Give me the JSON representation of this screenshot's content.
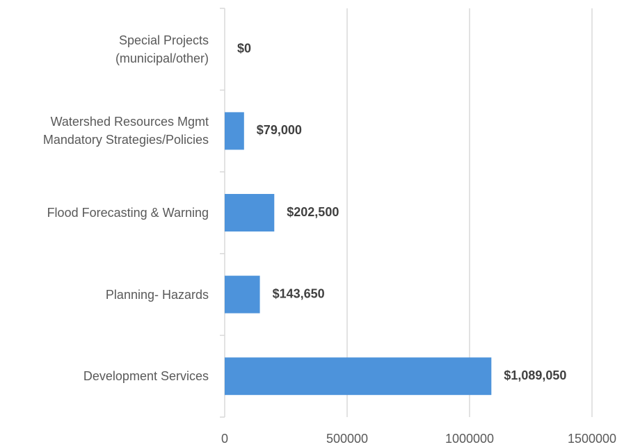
{
  "chart_data": {
    "type": "bar",
    "orientation": "horizontal",
    "categories": [
      "Special Projects\n(municipal/other)",
      "Watershed Resources Mgmt\nMandatory Strategies/Policies",
      "Flood Forecasting & Warning",
      "Planning- Hazards",
      "Development Services"
    ],
    "values": [
      0,
      79000,
      202500,
      143650,
      1089050
    ],
    "value_labels": [
      "$0",
      "$79,000",
      "$202,500",
      "$143,650",
      "$1,089,050"
    ],
    "color": "#4d93db",
    "xlim": [
      0,
      1500000
    ],
    "xticks": [
      0,
      500000,
      1000000,
      1500000
    ],
    "grid": true
  }
}
